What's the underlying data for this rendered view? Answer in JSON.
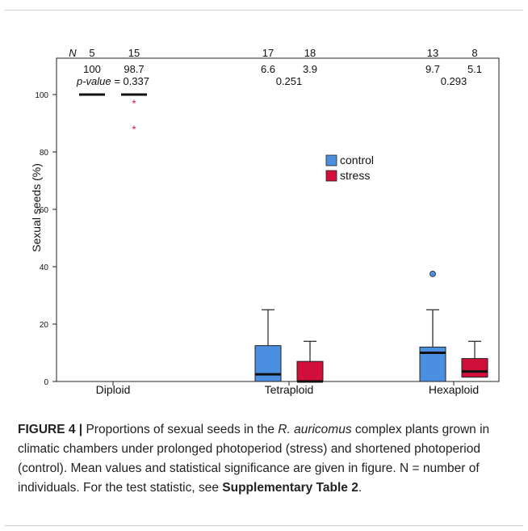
{
  "chart_data": {
    "type": "box",
    "ylabel": "Sexual seeds (%)",
    "ylim": [
      0,
      110
    ],
    "yticks": [
      0,
      20,
      40,
      60,
      80,
      100
    ],
    "categories": [
      "Diploid",
      "Tetraploid",
      "Hexaploid"
    ],
    "series": [
      {
        "name": "control",
        "color": "#4a8fe0"
      },
      {
        "name": "stress",
        "color": "#d0103a"
      }
    ],
    "boxes": [
      {
        "category": "Diploid",
        "series": "control",
        "min": 100,
        "q1": 100,
        "median": 100,
        "q3": 100,
        "max": 100,
        "outliers": []
      },
      {
        "category": "Diploid",
        "series": "stress",
        "min": 100,
        "q1": 100,
        "median": 100,
        "q3": 100,
        "max": 100,
        "outliers": [
          97,
          88
        ]
      },
      {
        "category": "Tetraploid",
        "series": "control",
        "min": 0,
        "q1": 0,
        "median": 2.5,
        "q3": 12.5,
        "max": 25,
        "outliers": []
      },
      {
        "category": "Tetraploid",
        "series": "stress",
        "min": 0,
        "q1": 0,
        "median": 0,
        "q3": 7,
        "max": 14,
        "outliers": []
      },
      {
        "category": "Hexaploid",
        "series": "control",
        "min": 0,
        "q1": 0,
        "median": 10,
        "q3": 12,
        "max": 25,
        "outliers": [
          37.5
        ]
      },
      {
        "category": "Hexaploid",
        "series": "stress",
        "min": 1.5,
        "q1": 1.5,
        "median": 3.5,
        "q3": 8,
        "max": 14,
        "outliers": []
      }
    ],
    "legend_position": "center"
  },
  "annotations": {
    "n_label": "N",
    "pvalue_label": "p-value =",
    "groups": [
      {
        "n": [
          "5",
          "15"
        ],
        "means": [
          "100",
          "98.7"
        ],
        "pvalue": "0.337"
      },
      {
        "n": [
          "17",
          "18"
        ],
        "means": [
          "6.6",
          "3.9"
        ],
        "pvalue": "0.251"
      },
      {
        "n": [
          "13",
          "8"
        ],
        "means": [
          "9.7",
          "5.1"
        ],
        "pvalue": "0.293"
      }
    ]
  },
  "caption": {
    "label": "FIGURE 4 |",
    "text_1": " Proportions of sexual seeds in the ",
    "species": "R. auricomus",
    "text_2": " complex plants grown in climatic chambers under prolonged photoperiod (stress) and shortened photoperiod (control). Mean values and statistical significance are given in figure. N = number of individuals. For the test statistic, see ",
    "link": "Supplementary Table 2",
    "end": "."
  }
}
